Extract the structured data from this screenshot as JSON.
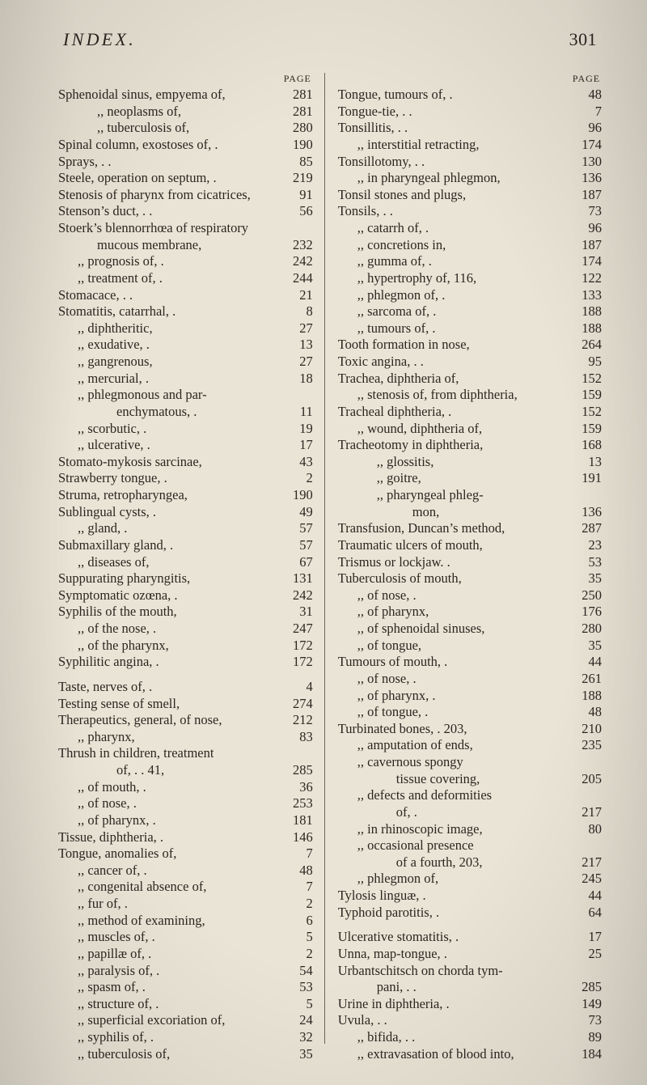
{
  "header": {
    "title": "INDEX.",
    "page_number": "301"
  },
  "column_page_label": "PAGE",
  "left_column": [
    {
      "label": "Sphenoidal sinus, empyema of,",
      "page": "281",
      "indent": 0
    },
    {
      "label": ",,        neoplasms of,",
      "page": "281",
      "indent": 2
    },
    {
      "label": ",,        tuberculosis of,",
      "page": "280",
      "indent": 2
    },
    {
      "label": "Spinal column, exostoses of,   .",
      "page": "190",
      "indent": 0
    },
    {
      "label": "Sprays,            .           .",
      "page": "85",
      "indent": 0
    },
    {
      "label": "Steele, operation on septum,   .",
      "page": "219",
      "indent": 0
    },
    {
      "label": "Stenosis of pharynx from cicatrices,",
      "page": "91",
      "indent": 0
    },
    {
      "label": "Stenson’s duct,     .          .",
      "page": "56",
      "indent": 0
    },
    {
      "label": "Stoerk’s blennorrhœa of respiratory",
      "page": "",
      "indent": 0
    },
    {
      "label": "mucous membrane,",
      "page": "232",
      "indent": 2
    },
    {
      "label": ",,     prognosis of, .",
      "page": "242",
      "indent": 1
    },
    {
      "label": ",,     treatment of, .",
      "page": "244",
      "indent": 1
    },
    {
      "label": "Stomacace,      .       .",
      "page": "21",
      "indent": 0
    },
    {
      "label": "Stomatitis, catarrhal,   .",
      "page": "8",
      "indent": 0
    },
    {
      "label": ",,     diphtheritic,",
      "page": "27",
      "indent": 1
    },
    {
      "label": ",,     exudative,  .",
      "page": "13",
      "indent": 1
    },
    {
      "label": ",,     gangrenous,",
      "page": "27",
      "indent": 1
    },
    {
      "label": ",,     mercurial,  .",
      "page": "18",
      "indent": 1
    },
    {
      "label": ",,     phlegmonous and par-",
      "page": "",
      "indent": 1
    },
    {
      "label": "enchymatous,   .",
      "page": "11",
      "indent": 3
    },
    {
      "label": ",,     scorbutic,  .",
      "page": "19",
      "indent": 1
    },
    {
      "label": ",,     ulcerative, .",
      "page": "17",
      "indent": 1
    },
    {
      "label": "Stomato-mykosis sarcinae,",
      "page": "43",
      "indent": 0
    },
    {
      "label": "Strawberry tongue,    .",
      "page": "2",
      "indent": 0
    },
    {
      "label": "Struma, retropharyngea,",
      "page": "190",
      "indent": 0
    },
    {
      "label": "Sublingual cysts,     .",
      "page": "49",
      "indent": 0
    },
    {
      "label": ",,       gland,       .",
      "page": "57",
      "indent": 1
    },
    {
      "label": "Submaxillary gland,   .",
      "page": "57",
      "indent": 0
    },
    {
      "label": ",,              diseases of,",
      "page": "67",
      "indent": 1
    },
    {
      "label": "Suppurating pharyngitis,",
      "page": "131",
      "indent": 0
    },
    {
      "label": "Symptomatic ozœna,  .",
      "page": "242",
      "indent": 0
    },
    {
      "label": "Syphilis of the mouth,",
      "page": "31",
      "indent": 0
    },
    {
      "label": ",,   of the nose,   .",
      "page": "247",
      "indent": 1
    },
    {
      "label": ",,   of the pharynx,",
      "page": "172",
      "indent": 1
    },
    {
      "label": "Syphilitic angina,    .",
      "page": "172",
      "indent": 0
    },
    {
      "blank": true
    },
    {
      "label": "Taste, nerves of,     .",
      "page": "4",
      "indent": 0
    },
    {
      "label": "Testing sense of smell,",
      "page": "274",
      "indent": 0
    },
    {
      "label": "Therapeutics, general, of nose,",
      "page": "212",
      "indent": 0
    },
    {
      "label": ",,                  pharynx,",
      "page": "83",
      "indent": 1
    },
    {
      "label": "Thrush in children, treatment",
      "page": "",
      "indent": 0
    },
    {
      "label": "of,         .       . 41,",
      "page": "285",
      "indent": 3
    },
    {
      "label": ",,   of mouth,      .",
      "page": "36",
      "indent": 1
    },
    {
      "label": ",,   of nose,       .",
      "page": "253",
      "indent": 1
    },
    {
      "label": ",,   of pharynx,    .",
      "page": "181",
      "indent": 1
    },
    {
      "label": "Tissue, diphtheria,   .",
      "page": "146",
      "indent": 0
    },
    {
      "label": "Tongue, anomalies of,",
      "page": "7",
      "indent": 0
    },
    {
      "label": ",,   cancer of,     .",
      "page": "48",
      "indent": 1
    },
    {
      "label": ",,   congenital absence of,",
      "page": "7",
      "indent": 1
    },
    {
      "label": ",,   fur of,        .",
      "page": "2",
      "indent": 1
    },
    {
      "label": ",,   method of examining,",
      "page": "6",
      "indent": 1
    },
    {
      "label": ",,   muscles of,    .",
      "page": "5",
      "indent": 1
    },
    {
      "label": ",,   papillæ of,    .",
      "page": "2",
      "indent": 1
    },
    {
      "label": ",,   paralysis of,  .",
      "page": "54",
      "indent": 1
    },
    {
      "label": ",,   spasm of,      .",
      "page": "53",
      "indent": 1
    },
    {
      "label": ",,   structure of,  .",
      "page": "5",
      "indent": 1
    },
    {
      "label": ",,   superficial excoriation of,",
      "page": "24",
      "indent": 1
    },
    {
      "label": ",,   syphilis of,   .",
      "page": "32",
      "indent": 1
    },
    {
      "label": ",,   tuberculosis of,",
      "page": "35",
      "indent": 1
    }
  ],
  "right_column": [
    {
      "label": "Tongue, tumours of,   .",
      "page": "48",
      "indent": 0
    },
    {
      "label": "Tongue-tie,     .     .",
      "page": "7",
      "indent": 0
    },
    {
      "label": "Tonsillitis,    .     .",
      "page": "96",
      "indent": 0
    },
    {
      "label": ",,     interstitial retracting,",
      "page": "174",
      "indent": 1
    },
    {
      "label": "Tonsillotomy, .       .",
      "page": "130",
      "indent": 0
    },
    {
      "label": ",,   in pharyngeal phlegmon,",
      "page": "136",
      "indent": 1
    },
    {
      "label": "Tonsil stones and plugs,",
      "page": "187",
      "indent": 0
    },
    {
      "label": "Tonsils,        .     .",
      "page": "73",
      "indent": 0
    },
    {
      "label": ",,   catarrh of,    .",
      "page": "96",
      "indent": 1
    },
    {
      "label": ",,   concretions in,",
      "page": "187",
      "indent": 1
    },
    {
      "label": ",,   gumma of,      .",
      "page": "174",
      "indent": 1
    },
    {
      "label": ",,   hypertrophy of,     116,",
      "page": "122",
      "indent": 1
    },
    {
      "label": ",,   phlegmon of,   .",
      "page": "133",
      "indent": 1
    },
    {
      "label": ",,   sarcoma of,    .",
      "page": "188",
      "indent": 1
    },
    {
      "label": ",,   tumours of,    .",
      "page": "188",
      "indent": 1
    },
    {
      "label": "Tooth formation in nose,",
      "page": "264",
      "indent": 0
    },
    {
      "label": "Toxic angina, .       .",
      "page": "95",
      "indent": 0
    },
    {
      "label": "Trachea, diphtheria of,",
      "page": "152",
      "indent": 0
    },
    {
      "label": ",,   stenosis of, from diphtheria,",
      "page": "159",
      "indent": 1
    },
    {
      "label": "Tracheal diphtheria,  .",
      "page": "152",
      "indent": 0
    },
    {
      "label": ",,     wound, diphtheria of,",
      "page": "159",
      "indent": 1
    },
    {
      "label": "Tracheotomy in diphtheria,",
      "page": "168",
      "indent": 0
    },
    {
      "label": ",,         glossitis,",
      "page": "13",
      "indent": 2
    },
    {
      "label": ",,         goitre,",
      "page": "191",
      "indent": 2
    },
    {
      "label": ",,         pharyngeal phleg-",
      "page": "",
      "indent": 2
    },
    {
      "label": "mon,",
      "page": "136",
      "indent": 4
    },
    {
      "label": "Transfusion, Duncan’s method,",
      "page": "287",
      "indent": 0
    },
    {
      "label": "Traumatic ulcers of mouth,",
      "page": "23",
      "indent": 0
    },
    {
      "label": "Trismus or lockjaw.   .",
      "page": "53",
      "indent": 0
    },
    {
      "label": "Tuberculosis of mouth,",
      "page": "35",
      "indent": 0
    },
    {
      "label": ",,       of nose,   .",
      "page": "250",
      "indent": 1
    },
    {
      "label": ",,       of pharynx,",
      "page": "176",
      "indent": 1
    },
    {
      "label": ",,       of sphenoidal sinuses,",
      "page": "280",
      "indent": 1
    },
    {
      "label": ",,       of tongue,",
      "page": "35",
      "indent": 1
    },
    {
      "label": "Tumours of mouth,     .",
      "page": "44",
      "indent": 0
    },
    {
      "label": ",,     of nose,      .",
      "page": "261",
      "indent": 1
    },
    {
      "label": ",,     of pharynx,   .",
      "page": "188",
      "indent": 1
    },
    {
      "label": ",,     of tongue,    .",
      "page": "48",
      "indent": 1
    },
    {
      "label": "Turbinated bones,   .   203,",
      "page": "210",
      "indent": 0
    },
    {
      "label": ",,     amputation of ends,",
      "page": "235",
      "indent": 1
    },
    {
      "label": ",,     cavernous spongy",
      "page": "",
      "indent": 1
    },
    {
      "label": "tissue covering,",
      "page": "205",
      "indent": 3
    },
    {
      "label": ",,     defects and deformities",
      "page": "",
      "indent": 1
    },
    {
      "label": "of,       .",
      "page": "217",
      "indent": 3
    },
    {
      "label": ",,     in rhinoscopic image,",
      "page": "80",
      "indent": 1
    },
    {
      "label": ",,     occasional presence",
      "page": "",
      "indent": 1
    },
    {
      "label": "of a fourth,   203,",
      "page": "217",
      "indent": 3
    },
    {
      "label": ",,     phlegmon of,",
      "page": "245",
      "indent": 1
    },
    {
      "label": "Tylosis linguæ,       .",
      "page": "44",
      "indent": 0
    },
    {
      "label": "Typhoid parotitis,    .",
      "page": "64",
      "indent": 0
    },
    {
      "blank": true
    },
    {
      "label": "Ulcerative stomatitis, .",
      "page": "17",
      "indent": 0
    },
    {
      "label": "Unna, map-tongue,     .",
      "page": "25",
      "indent": 0
    },
    {
      "label": "Urbantschitsch on chorda tym-",
      "page": "",
      "indent": 0
    },
    {
      "label": "pani,       .        .",
      "page": "285",
      "indent": 2
    },
    {
      "label": "Urine in diphtheria,  .",
      "page": "149",
      "indent": 0
    },
    {
      "label": "Uvula,          .     .",
      "page": "73",
      "indent": 0
    },
    {
      "label": ",,   bifida, .       .",
      "page": "89",
      "indent": 1
    },
    {
      "label": ",,   extravasation of blood into,",
      "page": "184",
      "indent": 1
    }
  ]
}
